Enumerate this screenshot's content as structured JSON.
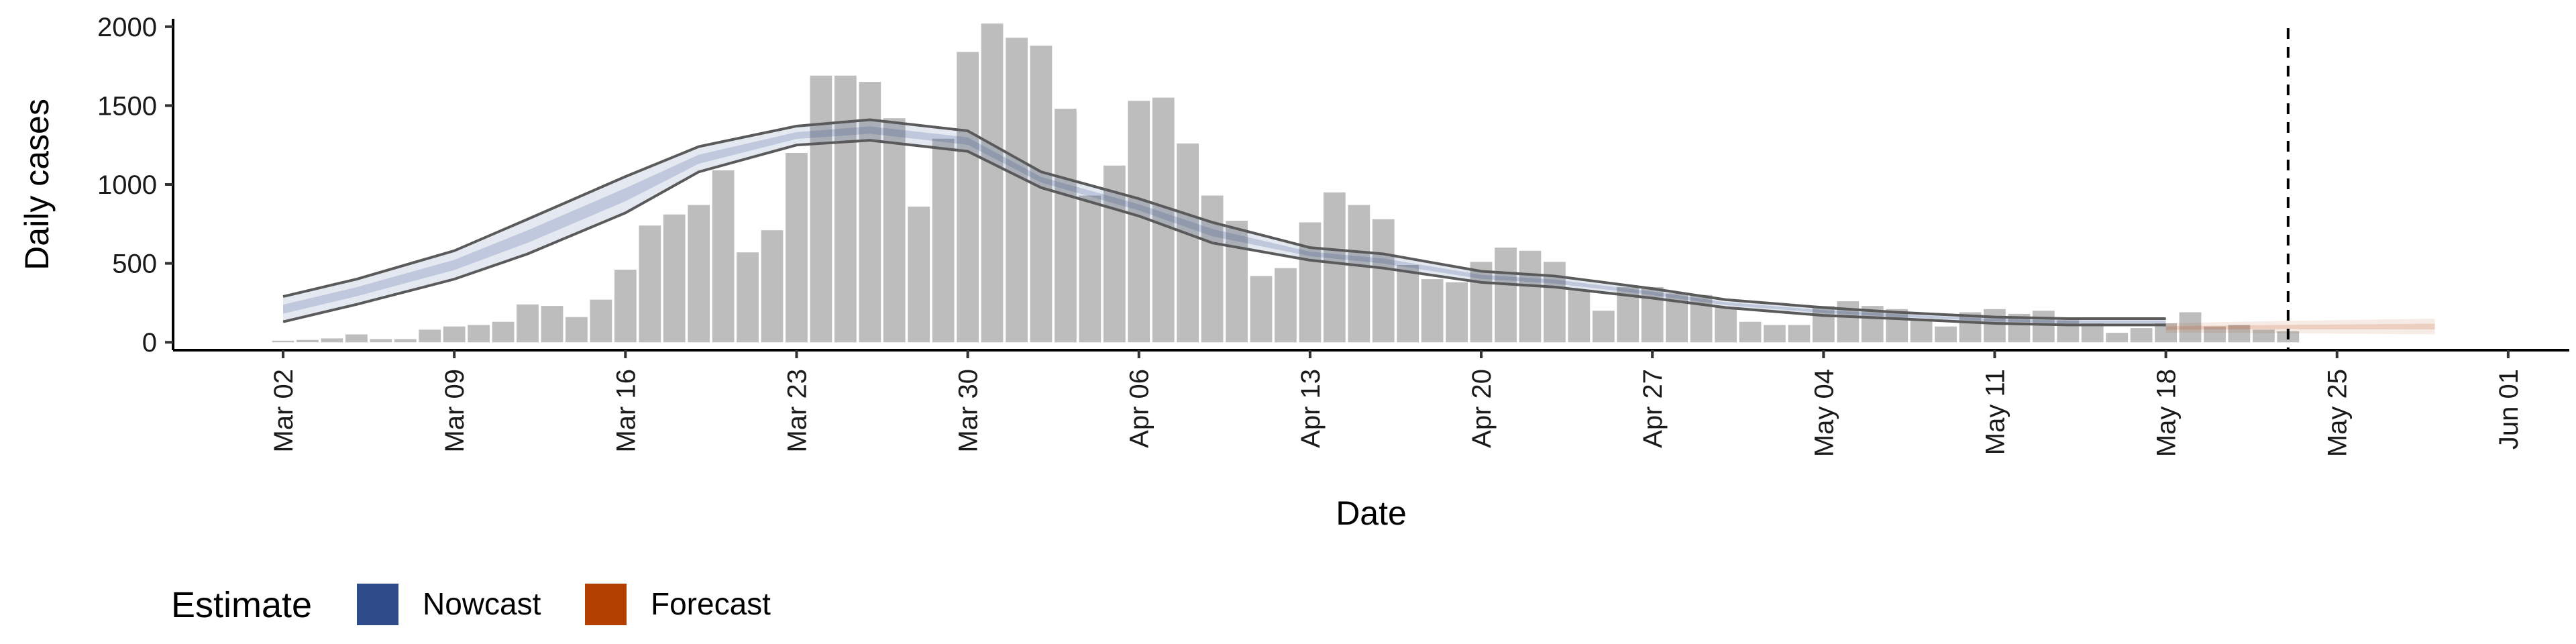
{
  "chart_data": {
    "type": "bar",
    "xlabel": "Date",
    "ylabel": "Daily cases",
    "ylim": [
      -50,
      2050
    ],
    "y_ticks": [
      0,
      500,
      1000,
      1500,
      2000
    ],
    "x_ticks": [
      "Mar 02",
      "Mar 09",
      "Mar 16",
      "Mar 23",
      "Mar 30",
      "Apr 06",
      "Apr 13",
      "Apr 20",
      "Apr 27",
      "May 04",
      "May 11",
      "May 18",
      "May 25",
      "Jun 01"
    ],
    "x_start": "Mar 02",
    "x_range_days": [
      -4.5,
      93.5
    ],
    "grid": false,
    "bars": {
      "color": "#bdbdbd",
      "values": [
        10,
        15,
        25,
        50,
        20,
        20,
        80,
        100,
        110,
        130,
        240,
        230,
        160,
        270,
        460,
        740,
        810,
        870,
        1090,
        570,
        710,
        1200,
        1690,
        1690,
        1650,
        1420,
        860,
        1290,
        1840,
        2020,
        1930,
        1880,
        1480,
        930,
        1120,
        1530,
        1550,
        1260,
        930,
        770,
        420,
        470,
        760,
        950,
        870,
        780,
        490,
        400,
        380,
        510,
        600,
        580,
        510,
        330,
        200,
        350,
        350,
        310,
        300,
        220,
        130,
        110,
        110,
        230,
        260,
        230,
        210,
        150,
        100,
        190,
        210,
        180,
        200,
        140,
        120,
        60,
        90,
        120,
        190,
        100,
        110,
        80,
        70
      ]
    },
    "nowcast": {
      "name": "Nowcast",
      "color": "#2f4b8a",
      "x_days": [
        0,
        3,
        7,
        10,
        14,
        17,
        21,
        24,
        28,
        31,
        35,
        38,
        42,
        45,
        49,
        52,
        56,
        59,
        63,
        66,
        70,
        73,
        77
      ],
      "upper": [
        290,
        400,
        580,
        780,
        1050,
        1240,
        1370,
        1410,
        1340,
        1080,
        910,
        760,
        600,
        560,
        450,
        420,
        340,
        270,
        220,
        190,
        160,
        150,
        150
      ],
      "lower": [
        130,
        240,
        400,
        560,
        820,
        1080,
        1250,
        1280,
        1210,
        980,
        800,
        630,
        520,
        470,
        380,
        350,
        280,
        220,
        170,
        150,
        120,
        110,
        110
      ]
    },
    "forecast": {
      "name": "Forecast",
      "color": "#b33f00",
      "x_days": [
        77,
        80,
        84,
        88
      ],
      "upper": [
        120,
        130,
        140,
        150
      ],
      "lower": [
        60,
        60,
        55,
        50
      ]
    },
    "vline_day": 82,
    "legend": {
      "title": "Estimate",
      "position": "bottom-left",
      "entries": [
        {
          "label": "Nowcast",
          "color": "#2f4b8a"
        },
        {
          "label": "Forecast",
          "color": "#b33f00"
        }
      ]
    }
  }
}
